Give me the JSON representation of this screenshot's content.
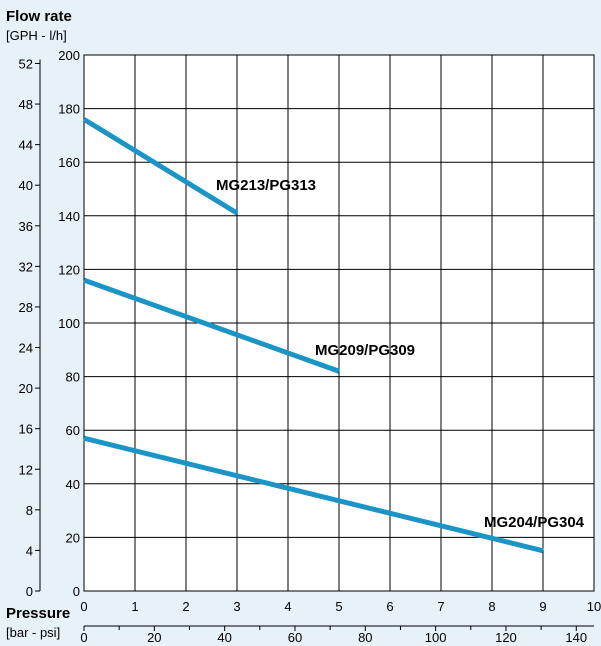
{
  "chart_data": {
    "type": "line",
    "y_title": "Flow rate",
    "y_units": "[GPH - l/h]",
    "x_title": "Pressure",
    "x_units": "[bar - psi]",
    "x_bar_ticks": [
      "0",
      "1",
      "2",
      "3",
      "4",
      "5",
      "6",
      "7",
      "8",
      "9",
      "10"
    ],
    "x_psi_ticks": [
      "0",
      "20",
      "40",
      "60",
      "80",
      "100",
      "120",
      "140"
    ],
    "y_lh_ticks": [
      "0",
      "20",
      "40",
      "60",
      "80",
      "100",
      "120",
      "140",
      "160",
      "180",
      "200"
    ],
    "y_gph_ticks": [
      "0",
      "4",
      "8",
      "12",
      "16",
      "20",
      "24",
      "28",
      "32",
      "36",
      "40",
      "44",
      "48",
      "52"
    ],
    "xlim": [
      0,
      10
    ],
    "ylim": [
      0,
      200
    ],
    "grid": true,
    "line_color": "#1b95c6",
    "series": [
      {
        "name": "MG213/PG313",
        "x": [
          0,
          3
        ],
        "y": [
          176,
          141
        ]
      },
      {
        "name": "MG209/PG309",
        "x": [
          0,
          5
        ],
        "y": [
          116,
          82
        ]
      },
      {
        "name": "MG204/PG304",
        "x": [
          0,
          9
        ],
        "y": [
          57,
          15
        ]
      }
    ]
  }
}
